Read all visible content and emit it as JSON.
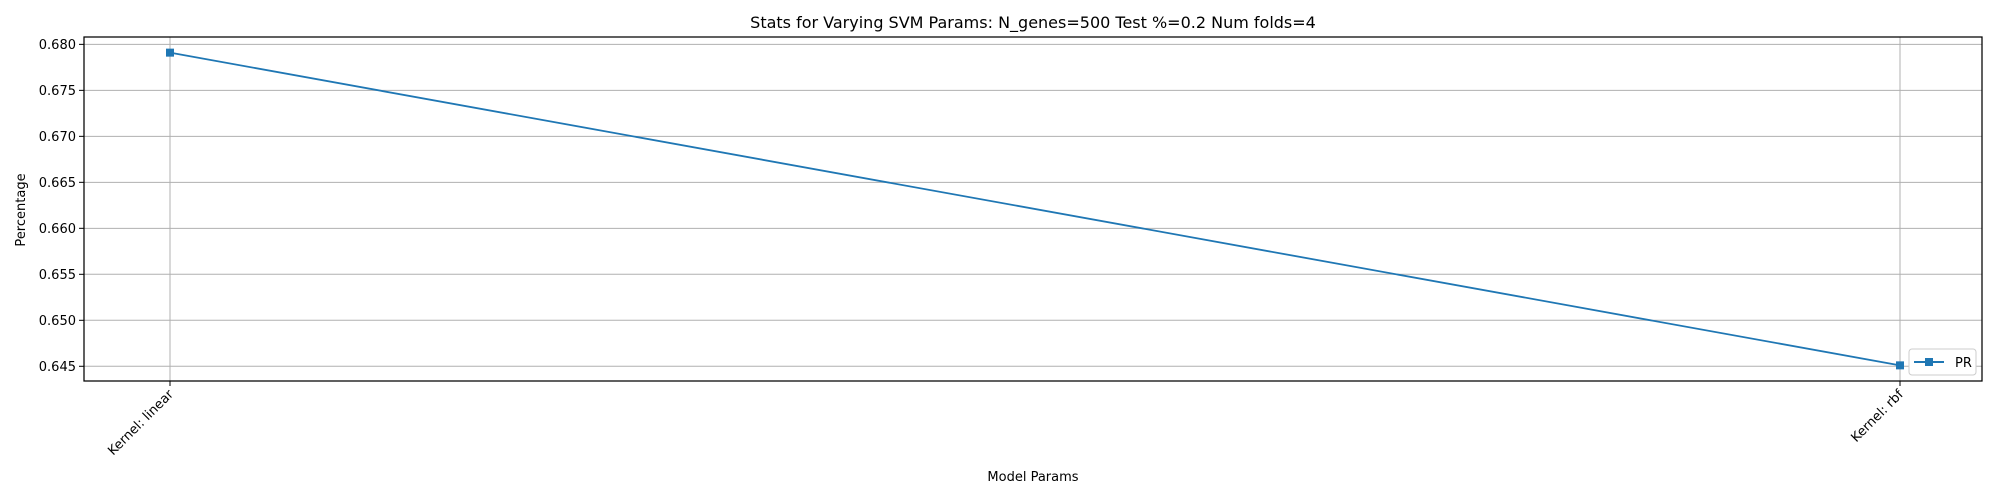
{
  "chart_data": {
    "type": "line",
    "title": "Stats for Varying SVM Params: N_genes=500 Test %=0.2 Num folds=4",
    "xlabel": "Model Params",
    "ylabel": "Percentage",
    "categories": [
      "Kernel: linear",
      "Kernel: rbf"
    ],
    "series": [
      {
        "name": "PR",
        "values": [
          0.6791,
          0.6451
        ],
        "color": "#1f77b4",
        "marker": "square"
      }
    ],
    "yticks": [
      "0.645",
      "0.650",
      "0.655",
      "0.660",
      "0.665",
      "0.670",
      "0.675",
      "0.680"
    ],
    "ylim": [
      0.6434,
      0.6808
    ],
    "grid": true,
    "legend_position": "lower right"
  }
}
